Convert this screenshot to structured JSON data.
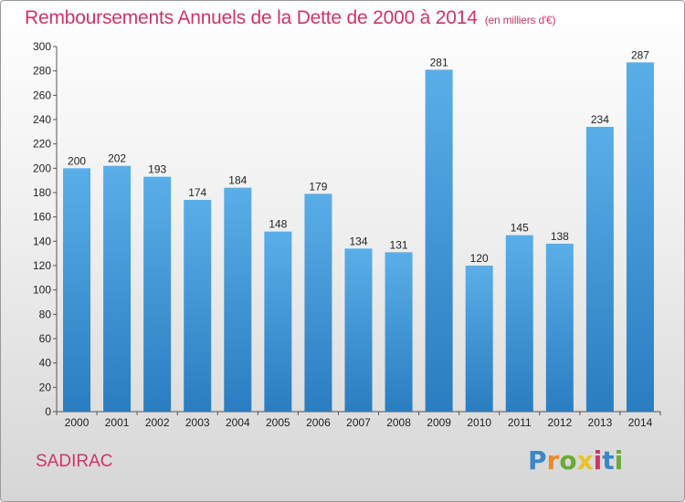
{
  "header": {
    "title": "Remboursements Annuels de la Dette de 2000 à 2014",
    "unit": "(en milliers d'€)"
  },
  "footer": {
    "city": "SADIRAC",
    "logo": "Proxiti"
  },
  "colors": {
    "title": "#d0336a",
    "bar_top": "#5aaee8",
    "bar_bottom": "#2a7dc0",
    "logo_letters": [
      "#3a86c8",
      "#e88a2c",
      "#6aaa3a",
      "#e8c22c",
      "#d0336a",
      "#3a86c8",
      "#6aaa3a"
    ]
  },
  "chart_data": {
    "type": "bar",
    "title": "Remboursements Annuels de la Dette de 2000 à 2014",
    "xlabel": "",
    "ylabel": "",
    "categories": [
      "2000",
      "2001",
      "2002",
      "2003",
      "2004",
      "2005",
      "2006",
      "2007",
      "2008",
      "2009",
      "2010",
      "2011",
      "2012",
      "2013",
      "2014"
    ],
    "values": [
      200,
      202,
      193,
      174,
      184,
      148,
      179,
      134,
      131,
      281,
      120,
      145,
      138,
      234,
      287
    ],
    "ylim": [
      0,
      300
    ],
    "yticks": [
      0,
      20,
      40,
      60,
      80,
      100,
      120,
      140,
      160,
      180,
      200,
      220,
      240,
      260,
      280,
      300
    ],
    "grid": false,
    "legend": "none"
  }
}
